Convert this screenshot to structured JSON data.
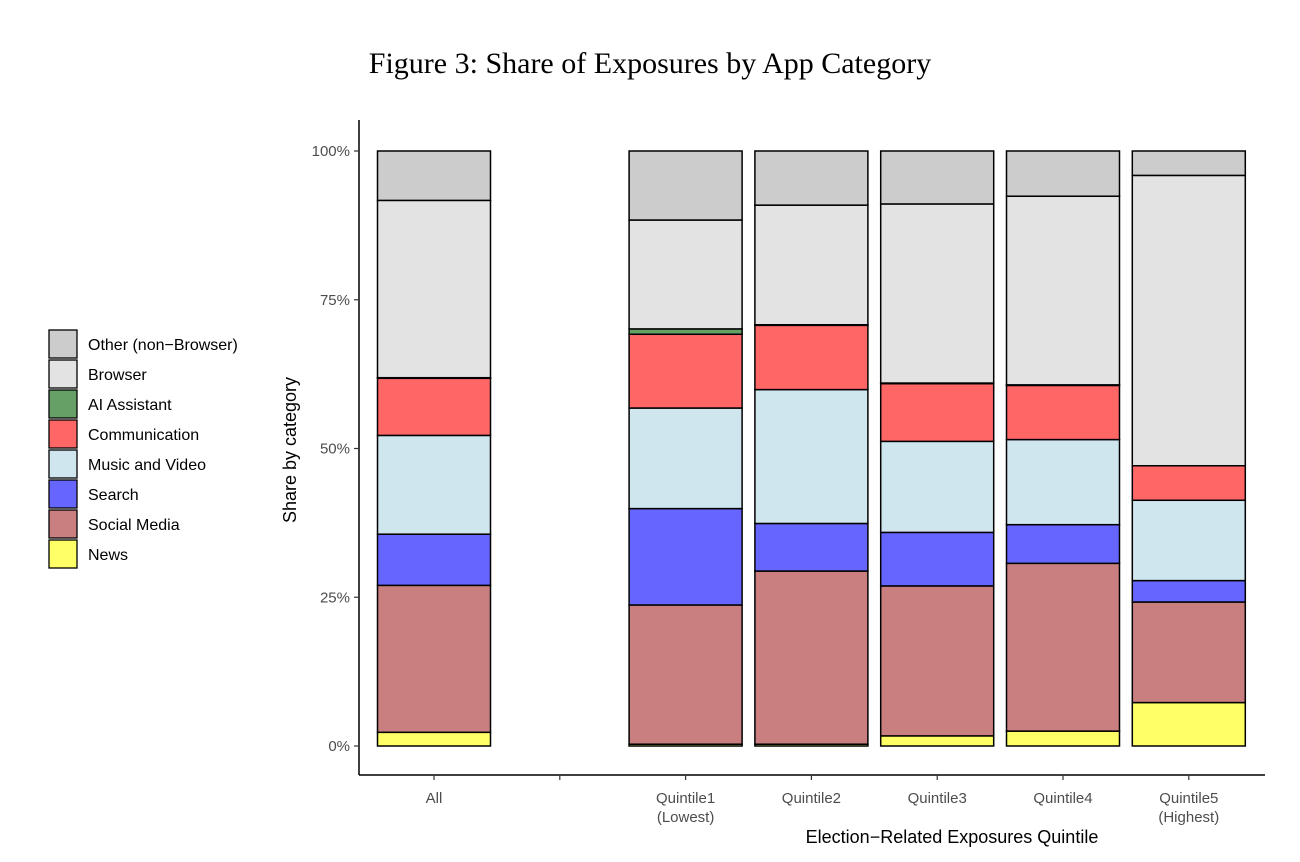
{
  "chart_data": {
    "type": "bar",
    "stacked": true,
    "title": "Figure 3: Share of Exposures by App Category",
    "xlabel": "Election−Related Exposures Quintile",
    "ylabel": "Share by category",
    "ylim": [
      0,
      100
    ],
    "yticks": [
      "0%",
      "25%",
      "50%",
      "75%",
      "100%"
    ],
    "categories": [
      {
        "label": "All",
        "sublabel": ""
      },
      {
        "label": "",
        "sublabel": ""
      },
      {
        "label": "Quintile1",
        "sublabel": "(Lowest)"
      },
      {
        "label": "Quintile2",
        "sublabel": ""
      },
      {
        "label": "Quintile3",
        "sublabel": ""
      },
      {
        "label": "Quintile4",
        "sublabel": ""
      },
      {
        "label": "Quintile5",
        "sublabel": "(Highest)"
      }
    ],
    "series": [
      {
        "name": "News",
        "color": "#ffff66",
        "values": [
          2.3,
          null,
          0.3,
          0.3,
          1.7,
          2.5,
          7.3
        ]
      },
      {
        "name": "Social Media",
        "color": "#c97f7f",
        "values": [
          24.7,
          null,
          23.4,
          29.1,
          25.2,
          28.2,
          16.9
        ]
      },
      {
        "name": "Search",
        "color": "#6666ff",
        "values": [
          8.6,
          null,
          16.2,
          8.0,
          9.0,
          6.5,
          3.6
        ]
      },
      {
        "name": "Music and Video",
        "color": "#cfe6ef",
        "values": [
          16.6,
          null,
          16.9,
          22.5,
          15.3,
          14.3,
          13.5
        ]
      },
      {
        "name": "Communication",
        "color": "#ff6666",
        "values": [
          9.6,
          null,
          12.4,
          10.8,
          9.7,
          9.1,
          5.8
        ]
      },
      {
        "name": "AI Assistant",
        "color": "#66a066",
        "values": [
          0.1,
          null,
          0.9,
          0.1,
          0.1,
          0.1,
          0.0
        ]
      },
      {
        "name": "Browser",
        "color": "#e3e3e3",
        "values": [
          29.8,
          null,
          18.3,
          20.1,
          30.1,
          31.7,
          48.8
        ]
      },
      {
        "name": "Other (non−Browser)",
        "color": "#cccccc",
        "values": [
          8.3,
          null,
          11.6,
          9.1,
          8.9,
          7.6,
          4.1
        ]
      }
    ],
    "legend": {
      "placement": "left",
      "order": [
        "Other (non−Browser)",
        "Browser",
        "AI Assistant",
        "Communication",
        "Music and Video",
        "Search",
        "Social Media",
        "News"
      ]
    }
  }
}
